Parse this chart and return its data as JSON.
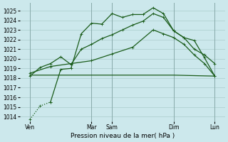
{
  "xlabel": "Pression niveau de la mer( hPa )",
  "bg_color": "#cce8ec",
  "grid_color": "#aacccc",
  "vline_color": "#88aaaa",
  "line_color": "#1a5c1a",
  "ylim": [
    1013.5,
    1025.8
  ],
  "xlim": [
    0.0,
    10.0
  ],
  "yticks": [
    1014,
    1015,
    1016,
    1017,
    1018,
    1019,
    1020,
    1021,
    1022,
    1023,
    1024,
    1025
  ],
  "xtick_positions": [
    0.5,
    3.5,
    4.5,
    7.5,
    9.5
  ],
  "xtick_labels": [
    "Ven",
    "Mar",
    "Sam",
    "Dim",
    "Lun"
  ],
  "vline_positions": [
    0.5,
    3.5,
    4.5,
    7.5,
    9.5
  ],
  "line1_x": [
    0.5,
    1.0,
    1.5,
    2.0,
    2.5,
    3.0,
    3.5,
    4.0,
    4.5,
    5.0,
    5.5,
    6.0,
    6.5,
    7.0,
    7.5,
    8.0,
    8.5,
    9.0,
    9.5
  ],
  "line1_y": [
    1013.7,
    1015.1,
    1015.5,
    1018.9,
    1019.0,
    1022.6,
    1023.7,
    1023.6,
    1024.7,
    1024.3,
    1024.6,
    1024.6,
    1025.3,
    1024.7,
    1022.9,
    1022.2,
    1021.0,
    1020.4,
    1019.5
  ],
  "line1_dotted_end": 2,
  "line2_x": [
    0.5,
    1.0,
    1.5,
    2.0,
    2.5,
    3.0,
    3.5,
    4.0,
    4.5,
    5.0,
    5.5,
    6.0,
    6.5,
    7.0,
    7.5,
    8.0,
    8.5,
    9.0,
    9.5
  ],
  "line2_y": [
    1018.2,
    1019.1,
    1019.5,
    1020.2,
    1019.4,
    1021.0,
    1021.5,
    1022.1,
    1022.5,
    1023.0,
    1023.5,
    1023.9,
    1024.7,
    1024.3,
    1022.9,
    1022.2,
    1021.9,
    1020.1,
    1018.2
  ],
  "line3_x": [
    0.5,
    1.5,
    2.5,
    3.5,
    4.5,
    5.5,
    6.5,
    7.0,
    7.5,
    8.0,
    8.5,
    9.0,
    9.5
  ],
  "line3_y": [
    1018.5,
    1019.2,
    1019.5,
    1019.8,
    1020.5,
    1021.2,
    1023.0,
    1022.6,
    1022.2,
    1021.5,
    1020.4,
    1019.5,
    1018.2
  ],
  "line4_x": [
    0.5,
    3.5,
    4.5,
    7.5,
    9.5
  ],
  "line4_y": [
    1018.3,
    1018.3,
    1018.3,
    1018.3,
    1018.2
  ],
  "markersize": 2.5,
  "linewidth": 0.9,
  "xlabel_fontsize": 6.5,
  "tick_fontsize": 5.5
}
